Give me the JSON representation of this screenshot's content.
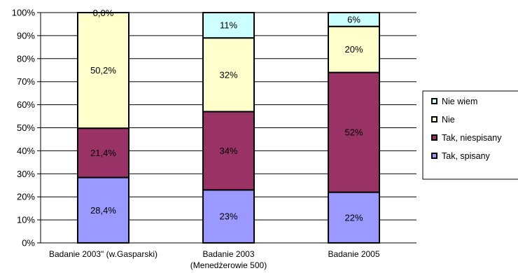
{
  "chart_data": {
    "type": "bar",
    "stacked": true,
    "normalized": true,
    "categories": [
      "Badanie 2003\" (w.Gasparski)",
      "Badanie 2003",
      "Badanie 2005"
    ],
    "category_sublabels": [
      "",
      "(Menedżerowie 500)",
      ""
    ],
    "ylim": [
      0,
      100
    ],
    "yticks": [
      0,
      10,
      20,
      30,
      40,
      50,
      60,
      70,
      80,
      90,
      100
    ],
    "ytick_labels": [
      "0%",
      "10%",
      "20%",
      "30%",
      "40%",
      "50%",
      "60%",
      "70%",
      "80%",
      "90%",
      "100%"
    ],
    "grid": true,
    "legend_position": "right",
    "series": [
      {
        "name": "Tak, spisany",
        "color": "#9999ff",
        "values": [
          28.4,
          23,
          22
        ],
        "labels": [
          "28,4%",
          "23%",
          "22%"
        ]
      },
      {
        "name": "Tak, niespisany",
        "color": "#993366",
        "values": [
          21.4,
          34,
          52
        ],
        "labels": [
          "21,4%",
          "34%",
          "52%"
        ]
      },
      {
        "name": "Nie",
        "color": "#ffffcc",
        "values": [
          50.2,
          32,
          20
        ],
        "labels": [
          "50,2%",
          "32%",
          "20%"
        ]
      },
      {
        "name": "Nie wiem",
        "color": "#ccffff",
        "values": [
          0.0,
          11,
          6
        ],
        "labels": [
          "0,0%",
          "11%",
          "6%"
        ]
      }
    ],
    "legend_order": [
      "Nie wiem",
      "Nie",
      "Tak, niespisany",
      "Tak, spisany"
    ]
  }
}
